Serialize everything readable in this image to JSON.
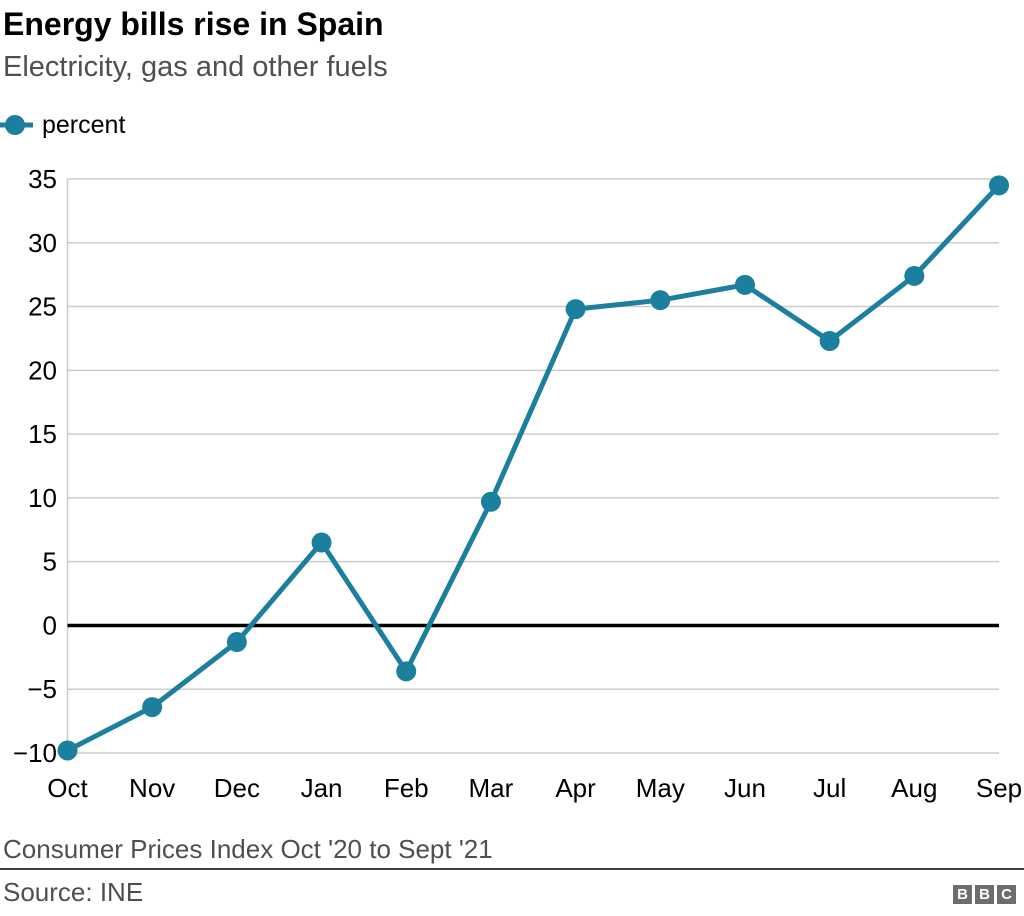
{
  "header": {
    "title": "Energy bills rise in Spain",
    "subtitle": "Electricity, gas and other fuels"
  },
  "legend": {
    "label": "percent"
  },
  "chart_data": {
    "type": "line",
    "title": "Energy bills rise in Spain",
    "subtitle": "Electricity, gas and other fuels",
    "categories": [
      "Oct",
      "Nov",
      "Dec",
      "Jan",
      "Feb",
      "Mar",
      "Apr",
      "May",
      "Jun",
      "Jul",
      "Aug",
      "Sep"
    ],
    "series": [
      {
        "name": "percent",
        "values": [
          -9.8,
          -6.4,
          -1.3,
          6.5,
          -3.6,
          9.7,
          24.8,
          25.5,
          26.7,
          22.3,
          27.4,
          34.5
        ]
      }
    ],
    "xlabel": "",
    "ylabel": "percent",
    "ylim": [
      -10,
      35
    ],
    "yticks": [
      35,
      30,
      25,
      20,
      15,
      10,
      5,
      0,
      -5,
      -10
    ],
    "grid": true,
    "zero_baseline": true,
    "legend_position": "top-left",
    "x_note": "Consumer Prices Index Oct '20 to Sept '21"
  },
  "footer": {
    "note": "Consumer Prices Index Oct '20 to Sept '21",
    "source": "Source: INE",
    "logo_letters": [
      "B",
      "B",
      "C"
    ]
  },
  "colors": {
    "accent": "#1d7f9e",
    "grid": "#cccccc",
    "zero_line": "#000000",
    "axis_text": "#000000",
    "text_muted": "#4f4f4f",
    "divider": "#404040",
    "logo_bg": "#6d6d6d"
  }
}
